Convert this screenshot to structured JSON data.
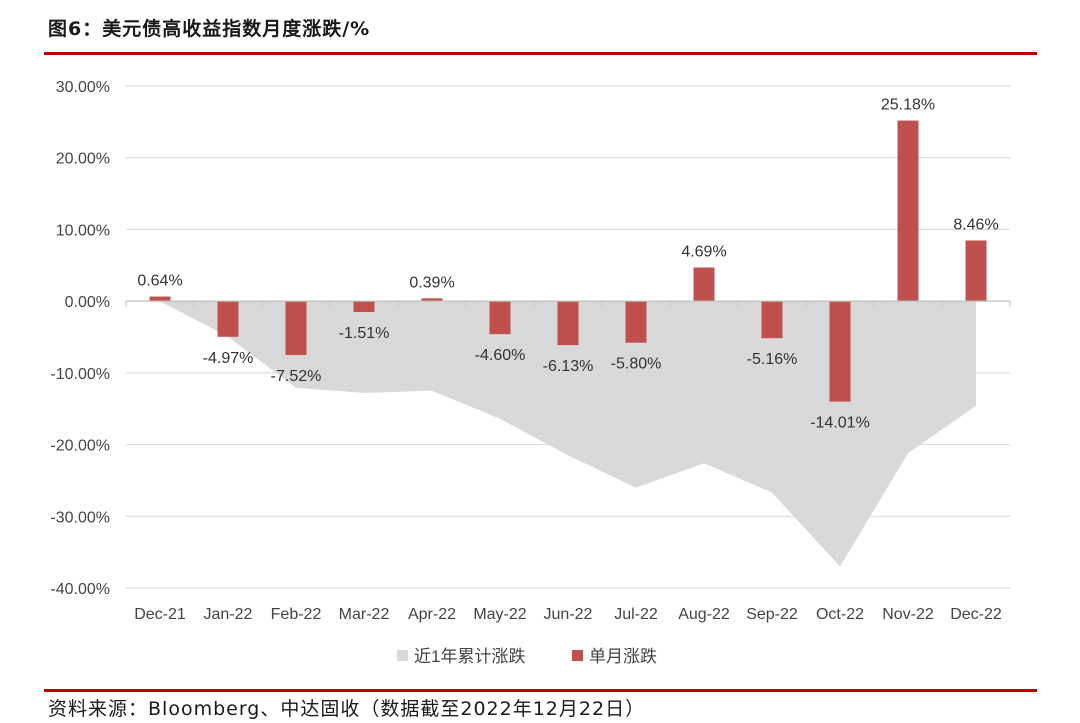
{
  "header": {
    "title": "图6：美元债高收益指数月度涨跌/%"
  },
  "footer": {
    "source": "资料来源：Bloomberg、中达固收（数据截至2022年12月22日）"
  },
  "colors": {
    "bar": "#c0504d",
    "area": "#d9d9d9",
    "accent": "#c00000",
    "grid": "#d9d9d9"
  },
  "chart_data": {
    "type": "bar",
    "categories": [
      "Dec-21",
      "Jan-22",
      "Feb-22",
      "Mar-22",
      "Apr-22",
      "May-22",
      "Jun-22",
      "Jul-22",
      "Aug-22",
      "Sep-22",
      "Oct-22",
      "Nov-22",
      "Dec-22"
    ],
    "series": [
      {
        "name": "近1年累计涨跌",
        "type": "area",
        "values": [
          0.0,
          -4.97,
          -12.1,
          -12.8,
          -12.5,
          -16.4,
          -21.5,
          -26.0,
          -22.6,
          -26.7,
          -37.0,
          -21.2,
          -14.6
        ]
      },
      {
        "name": "单月涨跌",
        "type": "bar",
        "values": [
          0.64,
          -4.97,
          -7.52,
          -1.51,
          0.39,
          -4.6,
          -6.13,
          -5.8,
          4.69,
          -5.16,
          -14.01,
          25.18,
          8.46
        ],
        "labels": [
          "0.64%",
          "-4.97%",
          "-7.52%",
          "-1.51%",
          "0.39%",
          "-4.60%",
          "-6.13%",
          "-5.80%",
          "4.69%",
          "-5.16%",
          "-14.01%",
          "25.18%",
          "8.46%"
        ]
      }
    ],
    "yticks": [
      "30.00%",
      "20.00%",
      "10.00%",
      "0.00%",
      "-10.00%",
      "-20.00%",
      "-30.00%",
      "-40.00%"
    ],
    "ytick_values": [
      30,
      20,
      10,
      0,
      -10,
      -20,
      -30,
      -40
    ],
    "ylim": [
      -40,
      30
    ],
    "grid": true,
    "legend": {
      "placement": "bottom",
      "items": [
        "近1年累计涨跌",
        "单月涨跌"
      ]
    }
  }
}
